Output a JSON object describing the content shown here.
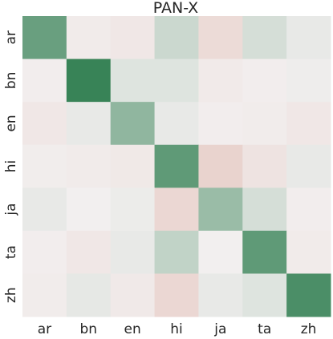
{
  "chart_data": {
    "type": "heatmap",
    "title": "PAN-X",
    "xlabel": "",
    "ylabel": "",
    "x_categories": [
      "ar",
      "bn",
      "en",
      "hi",
      "ja",
      "ta",
      "zh"
    ],
    "y_categories": [
      "ar",
      "bn",
      "en",
      "hi",
      "ja",
      "ta",
      "zh"
    ],
    "value_range": [
      -1,
      1
    ],
    "colormap": {
      "negative": "#d9a090",
      "neutral": "#f2efef",
      "positive": "#2e7d4f"
    },
    "values": [
      [
        0.7,
        -0.05,
        -0.1,
        0.2,
        -0.25,
        0.15,
        0.05
      ],
      [
        -0.02,
        0.95,
        0.1,
        0.1,
        -0.06,
        -0.02,
        0.02
      ],
      [
        -0.1,
        0.05,
        0.5,
        0.05,
        -0.02,
        -0.04,
        -0.1
      ],
      [
        -0.03,
        -0.05,
        -0.08,
        0.75,
        -0.35,
        -0.15,
        0.05
      ],
      [
        0.05,
        0.0,
        0.03,
        -0.3,
        0.45,
        0.15,
        -0.02
      ],
      [
        -0.02,
        -0.1,
        0.05,
        0.25,
        0.0,
        0.75,
        -0.05
      ],
      [
        -0.04,
        0.06,
        -0.07,
        -0.3,
        0.05,
        0.1,
        0.85
      ]
    ],
    "grid": false,
    "colorbar": false
  }
}
